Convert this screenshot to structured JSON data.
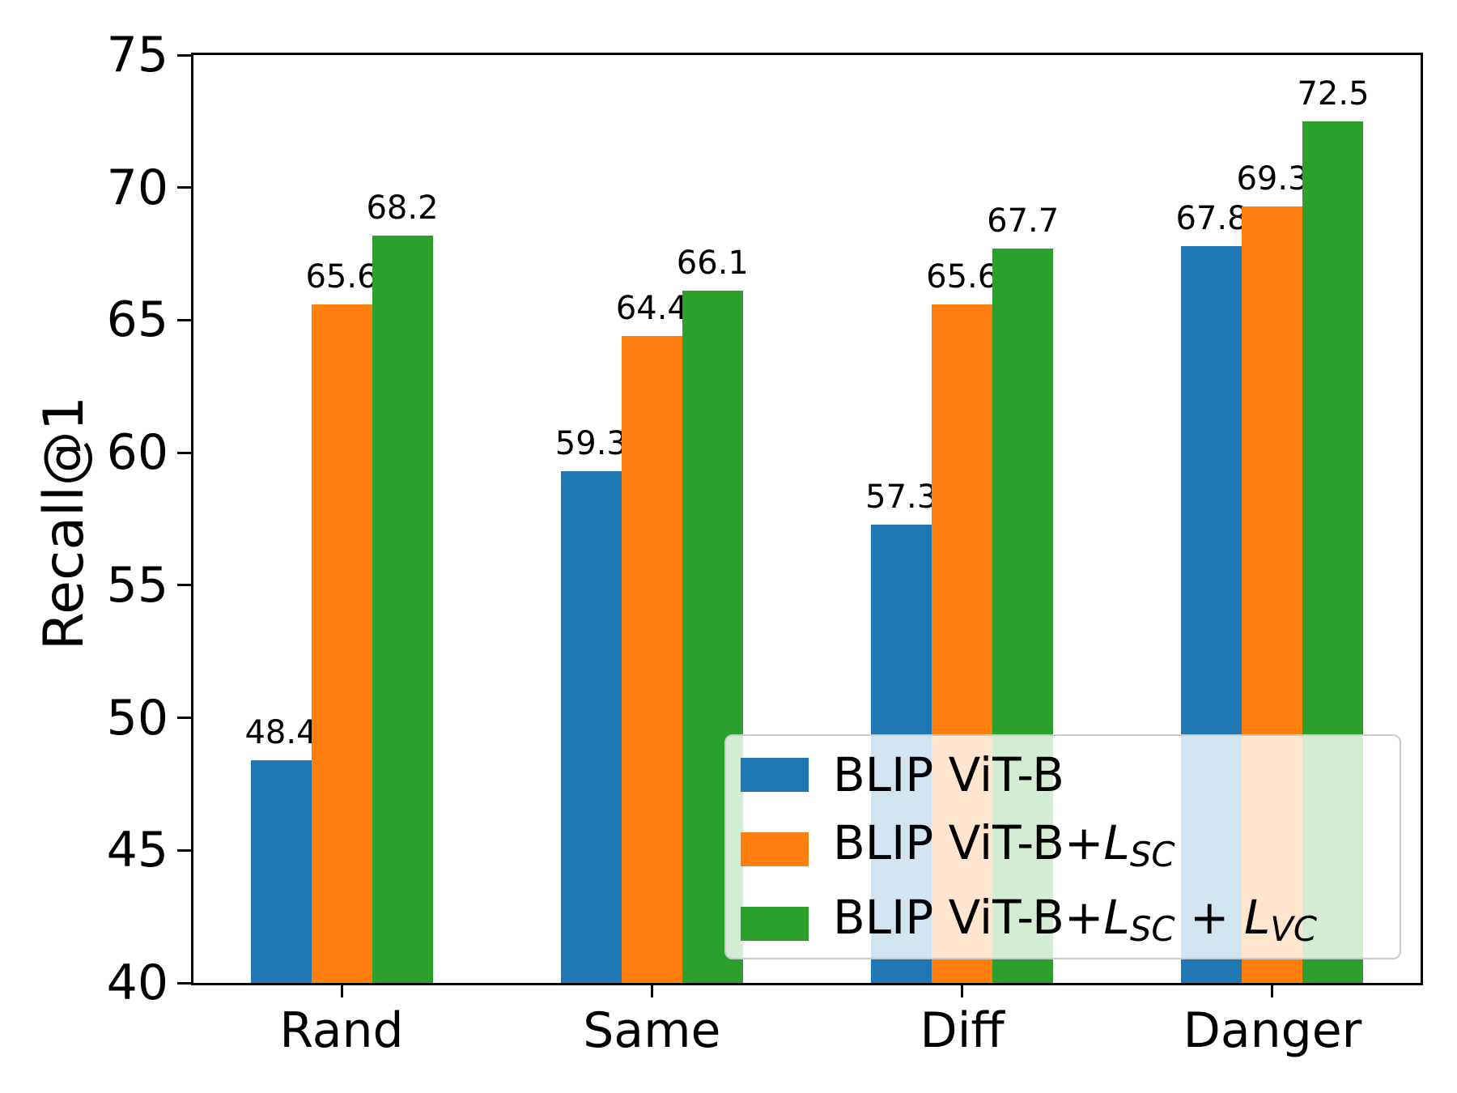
{
  "chart_data": {
    "type": "bar",
    "categories": [
      "Rand",
      "Same",
      "Diff",
      "Danger"
    ],
    "series": [
      {
        "name": "BLIP ViT-B",
        "color": "#1f77b4",
        "values": [
          48.4,
          59.3,
          57.3,
          67.8
        ]
      },
      {
        "name": "BLIP ViT-B+L_SC",
        "color": "#ff7f0e",
        "values": [
          65.6,
          64.4,
          65.6,
          69.3
        ]
      },
      {
        "name": "BLIP ViT-B+L_SC + L_VC",
        "color": "#2ca02c",
        "values": [
          68.2,
          66.1,
          67.7,
          72.5
        ]
      }
    ],
    "title": "",
    "xlabel": "",
    "ylabel": "Recall@1",
    "ylim": [
      40,
      75
    ],
    "yticks": [
      40,
      45,
      50,
      55,
      60,
      65,
      70,
      75
    ],
    "bar_value_labels": [
      "48.4",
      "65.6",
      "68.2",
      "59.3",
      "64.4",
      "66.1",
      "57.3",
      "65.6",
      "67.7",
      "67.8",
      "69.3",
      "72.5"
    ],
    "grid": false,
    "legend_position": "lower right"
  },
  "legend": {
    "items": [
      {
        "segments": [
          {
            "t": "BLIP ViT-B",
            "s": "n"
          }
        ]
      },
      {
        "segments": [
          {
            "t": "BLIP ViT-B+",
            "s": "n"
          },
          {
            "t": "L",
            "s": "i"
          },
          {
            "t": "SC",
            "s": "sub"
          }
        ]
      },
      {
        "segments": [
          {
            "t": "BLIP ViT-B+",
            "s": "n"
          },
          {
            "t": "L",
            "s": "i"
          },
          {
            "t": "SC",
            "s": "sub"
          },
          {
            "t": " + ",
            "s": "n"
          },
          {
            "t": "L",
            "s": "i"
          },
          {
            "t": "VC",
            "s": "sub"
          }
        ]
      }
    ]
  },
  "colors": {
    "axis": "#000000",
    "legend_border": "#cccccc",
    "background": "#ffffff"
  }
}
